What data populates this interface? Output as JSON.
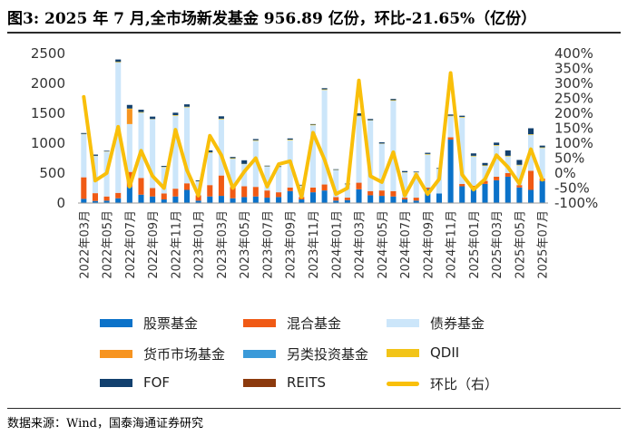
{
  "figure": {
    "title": "图3:  2025 年 7 月,全市场新发基金 956.89 亿份，环比-21.65%（亿份）",
    "source": "数据来源：Wind，国泰海通证券研究"
  },
  "chart_data": {
    "type": "bar",
    "stacked": true,
    "categories": [
      "2022年03月",
      "2022年04月",
      "2022年05月",
      "2022年06月",
      "2022年07月",
      "2022年08月",
      "2022年09月",
      "2022年10月",
      "2022年11月",
      "2022年12月",
      "2023年01月",
      "2023年02月",
      "2023年03月",
      "2023年04月",
      "2023年05月",
      "2023年06月",
      "2023年07月",
      "2023年08月",
      "2023年09月",
      "2023年10月",
      "2023年11月",
      "2023年12月",
      "2024年01月",
      "2024年02月",
      "2024年03月",
      "2024年04月",
      "2024年05月",
      "2024年06月",
      "2024年07月",
      "2024年08月",
      "2024年09月",
      "2024年10月",
      "2024年11月",
      "2024年12月",
      "2025年01月",
      "2025年02月",
      "2025年03月",
      "2025年04月",
      "2025年05月",
      "2025年06月",
      "2025年07月"
    ],
    "tick_labels": [
      "2022年03月",
      "2022年05月",
      "2022年07月",
      "2022年09月",
      "2022年11月",
      "2023年01月",
      "2023年03月",
      "2023年05月",
      "2023年07月",
      "2023年09月",
      "2023年11月",
      "2024年01月",
      "2024年03月",
      "2024年05月",
      "2024年07月",
      "2024年09月",
      "2024年11月",
      "2025年01月",
      "2025年03月",
      "2025年05月",
      "2025年07月"
    ],
    "series": [
      {
        "name": "股票基金",
        "color": "#0b72c9",
        "values": [
          70,
          35,
          40,
          80,
          270,
          140,
          110,
          60,
          110,
          220,
          40,
          110,
          120,
          80,
          100,
          110,
          90,
          100,
          200,
          60,
          180,
          210,
          40,
          50,
          230,
          130,
          120,
          110,
          60,
          40,
          240,
          160,
          1060,
          280,
          250,
          320,
          380,
          440,
          260,
          220,
          370
        ]
      },
      {
        "name": "混合基金",
        "color": "#f05a15",
        "values": [
          360,
          130,
          70,
          90,
          250,
          280,
          140,
          100,
          130,
          110,
          90,
          190,
          340,
          190,
          180,
          160,
          120,
          80,
          60,
          40,
          80,
          100,
          60,
          40,
          110,
          70,
          90,
          90,
          30,
          50,
          20,
          0,
          40,
          40,
          40,
          50,
          60,
          60,
          40,
          320,
          40
        ]
      },
      {
        "name": "债券基金",
        "color": "#cce6fa",
        "values": [
          720,
          620,
          750,
          2180,
          800,
          1090,
          1150,
          440,
          1220,
          1270,
          230,
          540,
          940,
          470,
          370,
          770,
          400,
          420,
          790,
          190,
          1040,
          1580,
          450,
          220,
          1110,
          1180,
          780,
          1510,
          420,
          420,
          550,
          410,
          350,
          1110,
          490,
          250,
          520,
          280,
          330,
          600,
          510
        ]
      },
      {
        "name": "货币市场基金",
        "color": "#f79420",
        "values": [
          0,
          0,
          0,
          0,
          250,
          0,
          0,
          0,
          0,
          0,
          0,
          0,
          0,
          0,
          0,
          0,
          0,
          0,
          0,
          0,
          0,
          0,
          0,
          0,
          0,
          0,
          0,
          0,
          0,
          0,
          0,
          0,
          0,
          0,
          0,
          0,
          0,
          0,
          0,
          0,
          0
        ]
      },
      {
        "name": "另类投资基金",
        "color": "#3a9ad9",
        "values": [
          0,
          0,
          0,
          0,
          0,
          0,
          0,
          0,
          0,
          0,
          0,
          0,
          0,
          0,
          0,
          0,
          0,
          0,
          0,
          0,
          0,
          0,
          0,
          0,
          0,
          0,
          0,
          0,
          0,
          0,
          0,
          0,
          0,
          0,
          0,
          0,
          0,
          0,
          0,
          0,
          0
        ]
      },
      {
        "name": "QDII",
        "color": "#f2c418",
        "values": [
          5,
          5,
          5,
          10,
          10,
          10,
          5,
          5,
          10,
          10,
          5,
          10,
          10,
          10,
          5,
          10,
          5,
          5,
          10,
          5,
          10,
          10,
          5,
          5,
          10,
          5,
          5,
          10,
          5,
          5,
          10,
          5,
          10,
          10,
          10,
          10,
          10,
          10,
          10,
          10,
          10
        ]
      },
      {
        "name": "FOF",
        "color": "#12406e",
        "values": [
          15,
          20,
          10,
          40,
          60,
          40,
          40,
          15,
          40,
          40,
          15,
          30,
          40,
          20,
          60,
          20,
          10,
          10,
          20,
          10,
          10,
          20,
          10,
          10,
          40,
          20,
          20,
          20,
          20,
          10,
          20,
          10,
          20,
          20,
          40,
          40,
          40,
          90,
          80,
          100,
          30
        ]
      },
      {
        "name": "REITS",
        "color": "#8c3a0d",
        "values": [
          0,
          0,
          0,
          0,
          0,
          0,
          0,
          0,
          0,
          0,
          0,
          0,
          0,
          0,
          0,
          0,
          0,
          0,
          0,
          0,
          0,
          0,
          0,
          0,
          0,
          0,
          0,
          0,
          0,
          0,
          0,
          0,
          0,
          0,
          0,
          0,
          0,
          0,
          0,
          0,
          0
        ]
      }
    ],
    "line_series": {
      "name": "环比（右）",
      "color": "#f9bf0a",
      "axis": "right",
      "unit": "%",
      "values": [
        255,
        -25,
        0,
        155,
        -45,
        75,
        -10,
        -50,
        145,
        10,
        -75,
        125,
        60,
        -50,
        5,
        50,
        -45,
        30,
        40,
        -80,
        135,
        45,
        -70,
        -50,
        310,
        -10,
        -30,
        70,
        -75,
        -5,
        -70,
        -20,
        335,
        -5,
        -55,
        -20,
        60,
        20,
        -35,
        80,
        -22
      ]
    },
    "y_left": {
      "min": 0,
      "max": 2500,
      "ticks": [
        "0",
        "500",
        "1000",
        "1500",
        "2000",
        "2500"
      ],
      "tick_values": [
        0,
        500,
        1000,
        1500,
        2000,
        2500
      ]
    },
    "y_right": {
      "min": -100,
      "max": 400,
      "ticks": [
        "-100%",
        "-50%",
        "0%",
        "50%",
        "100%",
        "150%",
        "200%",
        "250%",
        "300%",
        "350%",
        "400%"
      ],
      "tick_values": [
        -100,
        -50,
        0,
        50,
        100,
        150,
        200,
        250,
        300,
        350,
        400
      ]
    },
    "grid": false,
    "legend_position": "bottom",
    "legend": [
      {
        "label": "股票基金",
        "color": "#0b72c9",
        "kind": "bar"
      },
      {
        "label": "混合基金",
        "color": "#f05a15",
        "kind": "bar"
      },
      {
        "label": "债券基金",
        "color": "#cce6fa",
        "kind": "bar"
      },
      {
        "label": "货币市场基金",
        "color": "#f79420",
        "kind": "bar"
      },
      {
        "label": "另类投资基金",
        "color": "#3a9ad9",
        "kind": "bar"
      },
      {
        "label": "QDII",
        "color": "#f2c418",
        "kind": "bar"
      },
      {
        "label": "FOF",
        "color": "#12406e",
        "kind": "bar"
      },
      {
        "label": "REITS",
        "color": "#8c3a0d",
        "kind": "bar"
      },
      {
        "label": "环比（右）",
        "color": "#f9bf0a",
        "kind": "line"
      }
    ]
  }
}
